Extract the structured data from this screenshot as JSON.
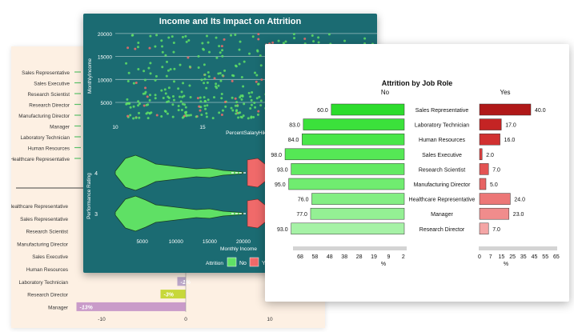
{
  "chart_data": [
    {
      "type": "bar",
      "panel": "background-left",
      "upper_categories": [
        "Sales Representative",
        "Sales Executive",
        "Research Scientist",
        "Research Director",
        "Manufacturing Director",
        "Manager",
        "Laboratory Technician",
        "Human Resources",
        "Healthcare Representative"
      ],
      "lower_categories": [
        "Healthcare Representative",
        "Sales Representative",
        "Research Scientist",
        "Manufacturing Director",
        "Sales Executive",
        "Human Resources",
        "Laboratory Technician",
        "Research Director",
        "Manager"
      ],
      "lower_values": [
        0,
        0,
        0,
        0,
        0,
        0,
        -1,
        -3,
        -13
      ],
      "value_labels": {
        "Laboratory Technician": "-1%",
        "Research Director": "-3%",
        "Manager": "-13%"
      },
      "xticks": [
        "-10",
        "0",
        "10"
      ],
      "xlim": [
        -13,
        10
      ]
    },
    {
      "type": "scatter",
      "title": "Income and Its Impact on Attrition",
      "xlabel": "PercentSalaryHike",
      "ylabel": "MonthlyIncome",
      "xticks": [
        10,
        15,
        20
      ],
      "yticks": [
        5000,
        10000,
        15000,
        20000
      ],
      "xlim": [
        10,
        25
      ],
      "ylim": [
        1000,
        20500
      ],
      "grid": true
    },
    {
      "type": "violin",
      "xlabel": "Monthly Income",
      "ylabel": "Performance Rating",
      "categories": [
        "4",
        "3"
      ],
      "xticks": [
        5000,
        10000,
        15000,
        20000
      ],
      "xlim": [
        1000,
        20000
      ]
    },
    {
      "type": "bar",
      "title": "Attrition by Job Role",
      "categories": [
        "Sales Representative",
        "Laboratory Technician",
        "Human Resources",
        "Sales Executive",
        "Research Scientist",
        "Manufacturing Director",
        "Healthcare Representative",
        "Manager",
        "Research Director"
      ],
      "series": [
        {
          "name": "No",
          "values": [
            60.0,
            83.0,
            84.0,
            98.0,
            93.0,
            95.0,
            76.0,
            77.0,
            93.0
          ]
        },
        {
          "name": "Yes",
          "values": [
            40.0,
            17.0,
            16.0,
            2.0,
            7.0,
            5.0,
            24.0,
            23.0,
            7.0
          ]
        }
      ],
      "value_labels_no": [
        "60.0",
        "83.0",
        "84.0",
        "98.0",
        "93.0",
        "95.0",
        "76.0",
        "77.0",
        "93.0"
      ],
      "value_labels_yes": [
        "40.0",
        "17.0",
        "16.0",
        "2.0",
        "7.0",
        "5.0",
        "24.0",
        "23.0",
        "7.0"
      ],
      "no_xticks": [
        "68",
        "58",
        "48",
        "38",
        "28",
        "19",
        "9",
        "2"
      ],
      "yes_xticks": [
        "0",
        "7",
        "15",
        "25",
        "35",
        "45",
        "55",
        "65"
      ],
      "xlabel": "%",
      "legend": {
        "title": "Attrition",
        "items": [
          "No",
          "Yes"
        ],
        "placement": "bottom"
      }
    }
  ],
  "colors": {
    "teal": "#1b6b72",
    "no_green": "#62f06a",
    "yes_red": "#f06a6a",
    "back_panel": "#fdf0e3"
  }
}
